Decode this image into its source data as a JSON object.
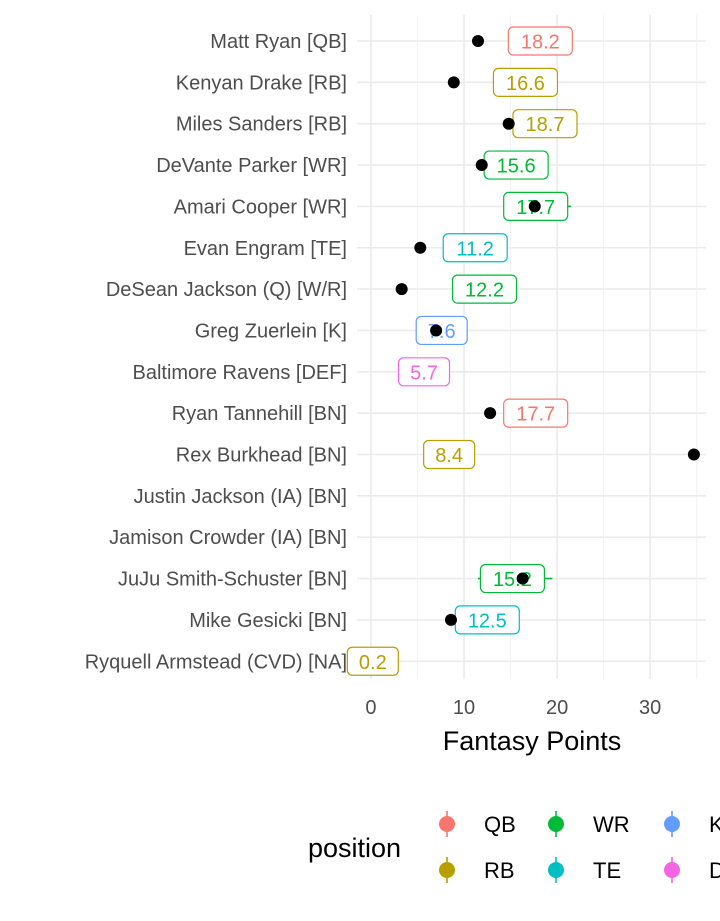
{
  "chart_data": {
    "type": "scatter",
    "xlabel": "Fantasy Points",
    "xlim": [
      -1.5,
      36
    ],
    "x_ticks": [
      0,
      10,
      20,
      30
    ],
    "grid": true,
    "legend": {
      "title": "position",
      "placement": "bottom",
      "entries": [
        {
          "name": "QB",
          "color": "#F8766D"
        },
        {
          "name": "RB",
          "color": "#B79F00"
        },
        {
          "name": "WR",
          "color": "#00BA38"
        },
        {
          "name": "TE",
          "color": "#00BFC4"
        },
        {
          "name": "K",
          "color": "#619CFF"
        },
        {
          "name": "DEF",
          "color": "#F564E3"
        }
      ]
    },
    "players": [
      {
        "name": "Matt Ryan [QB]",
        "position": "QB",
        "actual": 11.5,
        "projected": 18.2,
        "label": "18.2"
      },
      {
        "name": "Kenyan Drake [RB]",
        "position": "RB",
        "actual": 8.9,
        "projected": 16.6,
        "label": "16.6"
      },
      {
        "name": "Miles Sanders [RB]",
        "position": "RB",
        "actual": 14.8,
        "projected": 18.7,
        "label": "18.7"
      },
      {
        "name": "DeVante Parker [WR]",
        "position": "WR",
        "actual": 11.9,
        "projected": 15.6,
        "label": "15.6"
      },
      {
        "name": "Amari Cooper [WR]",
        "position": "WR",
        "actual": 17.6,
        "projected": 17.7,
        "label": "17.7",
        "err": [
          15.5,
          21.5
        ]
      },
      {
        "name": "Evan Engram [TE]",
        "position": "TE",
        "actual": 5.3,
        "projected": 11.2,
        "label": "11.2"
      },
      {
        "name": "DeSean Jackson (Q) [W/R]",
        "position": "WR",
        "actual": 3.3,
        "projected": 12.2,
        "label": "12.2"
      },
      {
        "name": "Greg Zuerlein [K]",
        "position": "K",
        "actual": 7.0,
        "projected": 7.6,
        "label": "7.6"
      },
      {
        "name": "Baltimore Ravens [DEF]",
        "position": "DEF",
        "actual": null,
        "projected": 5.7,
        "label": "5.7"
      },
      {
        "name": "Ryan Tannehill [BN]",
        "position": "QB",
        "actual": 12.8,
        "projected": 17.7,
        "label": "17.7"
      },
      {
        "name": "Rex Burkhead [BN]",
        "position": "RB",
        "actual": 34.7,
        "projected": 8.4,
        "label": "8.4"
      },
      {
        "name": "Justin Jackson (IA) [BN]",
        "position": "RB",
        "actual": null,
        "projected": null,
        "label": ""
      },
      {
        "name": "Jamison Crowder (IA) [BN]",
        "position": "WR",
        "actual": null,
        "projected": null,
        "label": ""
      },
      {
        "name": "JuJu Smith-Schuster [BN]",
        "position": "WR",
        "actual": 16.3,
        "projected": 15.2,
        "label": "15.2",
        "err": [
          11.5,
          19.5
        ]
      },
      {
        "name": "Mike Gesicki [BN]",
        "position": "TE",
        "actual": 8.6,
        "projected": 12.5,
        "label": "12.5"
      },
      {
        "name": "Ryquell Armstead (CVD) [NA]",
        "position": "RB",
        "actual": null,
        "projected": 0.2,
        "label": "0.2"
      }
    ]
  }
}
